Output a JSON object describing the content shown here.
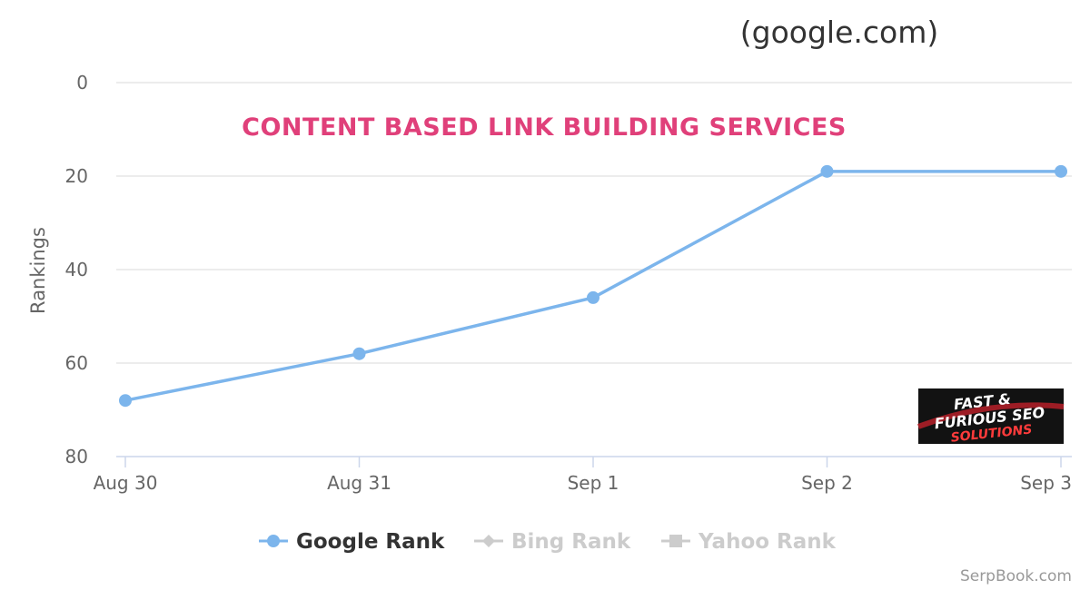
{
  "chart_data": {
    "type": "line",
    "subtitle": "(google.com)",
    "ylabel": "Rankings",
    "y_reversed": true,
    "ylim": [
      0,
      80
    ],
    "y_ticks": [
      "0",
      "20",
      "40",
      "60",
      "80"
    ],
    "categories": [
      "Aug 30",
      "Aug 31",
      "Sep 1",
      "Sep 2",
      "Sep 3"
    ],
    "series": [
      {
        "name": "Google Rank",
        "values": [
          68,
          58,
          46,
          19,
          19
        ],
        "color": "#7cb5ec",
        "visible": true,
        "marker": "circle"
      }
    ],
    "legend": [
      {
        "name": "Google Rank",
        "color": "#7cb5ec",
        "text_color": "#333333",
        "marker": "circle",
        "active": true
      },
      {
        "name": "Bing Rank",
        "color": "#cccccc",
        "text_color": "#cccccc",
        "marker": "diamond",
        "active": false
      },
      {
        "name": "Yahoo Rank",
        "color": "#cccccc",
        "text_color": "#cccccc",
        "marker": "square",
        "active": false
      }
    ],
    "legend_position": "bottom-center",
    "grid": true
  },
  "banner": "CONTENT BASED LINK BUILDING SERVICES",
  "logo": {
    "line1": "FAST &",
    "line2": "FURIOUS SEO",
    "line3": "SOLUTIONS"
  },
  "credit": "SerpBook.com"
}
